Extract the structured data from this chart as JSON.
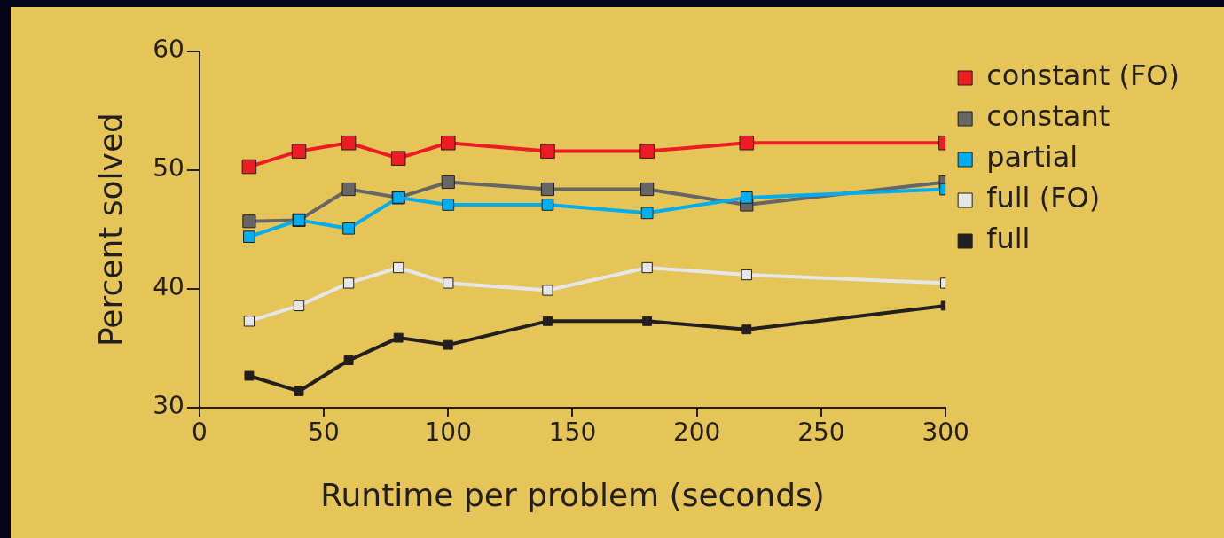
{
  "chart_data": {
    "type": "line",
    "xlabel": "Runtime per problem (seconds)",
    "ylabel": "Percent solved",
    "x": [
      20,
      40,
      60,
      80,
      100,
      140,
      180,
      220,
      300
    ],
    "series": [
      {
        "name": "constant (FO)",
        "color": "#ed1c24",
        "values": [
          50.3,
          51.6,
          52.3,
          51.0,
          52.3,
          51.6,
          51.6,
          52.3,
          52.3
        ]
      },
      {
        "name": "constant",
        "color": "#666666",
        "values": [
          45.7,
          45.8,
          48.4,
          47.7,
          49.0,
          48.4,
          48.4,
          47.1,
          49.0
        ]
      },
      {
        "name": "partial",
        "color": "#00aeef",
        "values": [
          44.4,
          45.8,
          45.1,
          47.7,
          47.1,
          47.1,
          46.4,
          47.7,
          48.4
        ]
      },
      {
        "name": "full (FO)",
        "color": "#e6e6e6",
        "values": [
          37.3,
          38.6,
          40.5,
          41.8,
          40.5,
          39.9,
          41.8,
          41.2,
          40.5
        ]
      },
      {
        "name": "full",
        "color": "#231f20",
        "values": [
          32.7,
          31.4,
          34.0,
          35.9,
          35.3,
          37.3,
          37.3,
          36.6,
          38.6
        ]
      }
    ],
    "xlim": [
      0,
      300
    ],
    "xticks": [
      0,
      50,
      100,
      150,
      200,
      250,
      300
    ],
    "ylim": [
      30,
      60
    ],
    "yticks": [
      30,
      40,
      50,
      60
    ],
    "legend": "right",
    "marker": "square"
  }
}
